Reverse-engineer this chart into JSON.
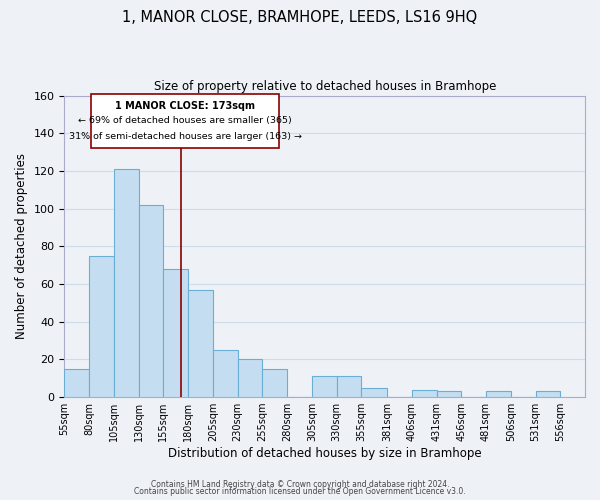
{
  "title": "1, MANOR CLOSE, BRAMHOPE, LEEDS, LS16 9HQ",
  "subtitle": "Size of property relative to detached houses in Bramhope",
  "xlabel": "Distribution of detached houses by size in Bramhope",
  "ylabel": "Number of detached properties",
  "bar_left_edges": [
    55,
    80,
    105,
    130,
    155,
    180,
    205,
    230,
    255,
    280,
    305,
    330,
    355,
    381,
    406,
    431,
    456,
    481,
    506,
    531
  ],
  "bar_widths": [
    25,
    25,
    25,
    25,
    25,
    25,
    25,
    25,
    25,
    25,
    25,
    25,
    26,
    25,
    25,
    25,
    25,
    25,
    25,
    25
  ],
  "bar_heights": [
    15,
    75,
    121,
    102,
    68,
    57,
    25,
    20,
    15,
    0,
    11,
    11,
    5,
    0,
    4,
    3,
    0,
    3,
    0,
    3
  ],
  "bar_color": "#c5ddf0",
  "bar_edge_color": "#6aaed6",
  "grid_color": "#d0dde8",
  "background_color": "#eef2f7",
  "property_line_x": 173,
  "property_line_color": "#8b0000",
  "annotation_line1": "1 MANOR CLOSE: 173sqm",
  "annotation_line2": "← 69% of detached houses are smaller (365)",
  "annotation_line3": "31% of semi-detached houses are larger (163) →",
  "tick_labels": [
    "55sqm",
    "80sqm",
    "105sqm",
    "130sqm",
    "155sqm",
    "180sqm",
    "205sqm",
    "230sqm",
    "255sqm",
    "280sqm",
    "305sqm",
    "330sqm",
    "355sqm",
    "381sqm",
    "406sqm",
    "431sqm",
    "456sqm",
    "481sqm",
    "506sqm",
    "531sqm",
    "556sqm"
  ],
  "tick_positions": [
    55,
    80,
    105,
    130,
    155,
    180,
    205,
    230,
    255,
    280,
    305,
    330,
    355,
    381,
    406,
    431,
    456,
    481,
    506,
    531,
    556
  ],
  "ylim": [
    0,
    160
  ],
  "yticks": [
    0,
    20,
    40,
    60,
    80,
    100,
    120,
    140,
    160
  ],
  "xlim": [
    55,
    581
  ],
  "footer_line1": "Contains HM Land Registry data © Crown copyright and database right 2024.",
  "footer_line2": "Contains public sector information licensed under the Open Government Licence v3.0."
}
